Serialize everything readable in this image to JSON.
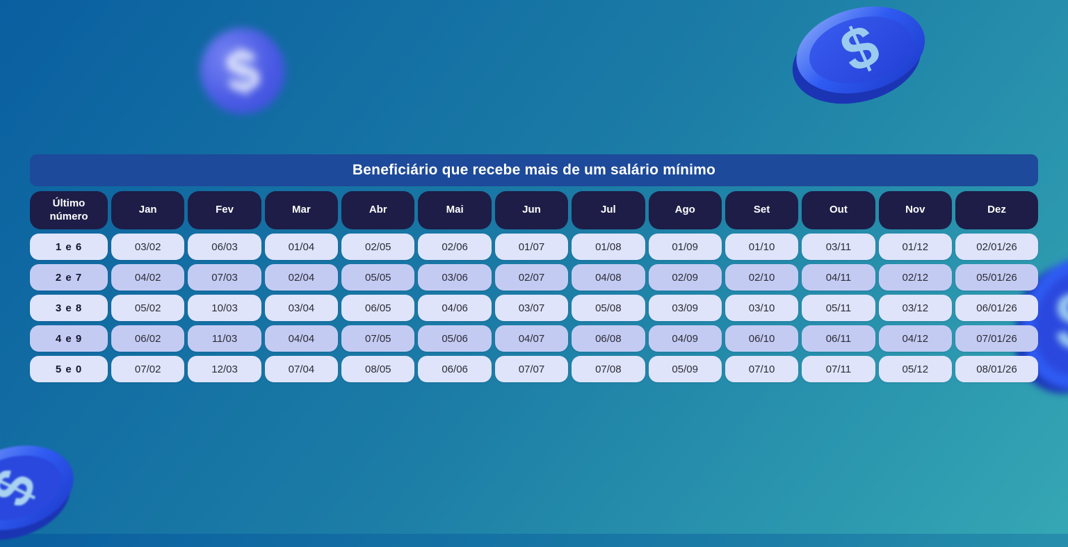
{
  "page": {
    "background_gradient": [
      "#0a5fa0",
      "#35a7b4"
    ]
  },
  "chart_data": {
    "type": "table",
    "title": "Beneficiário que recebe mais de um salário mínimo",
    "columns": [
      "Último número",
      "Jan",
      "Fev",
      "Mar",
      "Abr",
      "Mai",
      "Jun",
      "Jul",
      "Ago",
      "Set",
      "Out",
      "Nov",
      "Dez"
    ],
    "rows": [
      {
        "label": "1 e 6",
        "values": [
          "03/02",
          "06/03",
          "01/04",
          "02/05",
          "02/06",
          "01/07",
          "01/08",
          "01/09",
          "01/10",
          "03/11",
          "01/12",
          "02/01/26"
        ]
      },
      {
        "label": "2 e 7",
        "values": [
          "04/02",
          "07/03",
          "02/04",
          "05/05",
          "03/06",
          "02/07",
          "04/08",
          "02/09",
          "02/10",
          "04/11",
          "02/12",
          "05/01/26"
        ]
      },
      {
        "label": "3 e 8",
        "values": [
          "05/02",
          "10/03",
          "03/04",
          "06/05",
          "04/06",
          "03/07",
          "05/08",
          "03/09",
          "03/10",
          "05/11",
          "03/12",
          "06/01/26"
        ]
      },
      {
        "label": "4 e 9",
        "values": [
          "06/02",
          "11/03",
          "04/04",
          "07/05",
          "05/06",
          "04/07",
          "06/08",
          "04/09",
          "06/10",
          "06/11",
          "04/12",
          "07/01/26"
        ]
      },
      {
        "label": "5 e 0",
        "values": [
          "07/02",
          "12/03",
          "07/04",
          "08/05",
          "06/06",
          "07/07",
          "07/08",
          "05/09",
          "07/10",
          "07/11",
          "05/12",
          "08/01/26"
        ]
      }
    ],
    "layout_hints": {
      "row_striping": "alternating light/dark lavender",
      "header_style": "dark navy pills",
      "title_style": "royal blue bar"
    }
  },
  "colors": {
    "title_bar": "#1d4a9a",
    "header_cell": "#1d1d47",
    "row_light": "#dfe4fb",
    "row_dark": "#c4cbf3",
    "coin_rim": "#2f5bf2",
    "coin_face": "#2c4ce0",
    "coin_symbol": "#9ccbf0"
  },
  "decorations": {
    "coin_symbol": "$"
  }
}
